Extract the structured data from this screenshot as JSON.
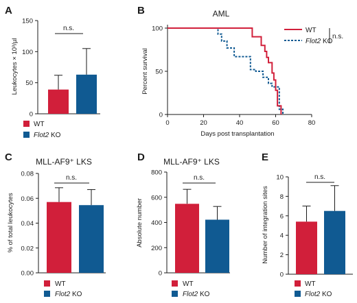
{
  "colors": {
    "wt": "#d11f3a",
    "ko": "#105a92",
    "axis": "#1a1a1a"
  },
  "legend": {
    "wt": "WT",
    "ko_italic": "Flot2",
    "ko_suffix": " KO"
  },
  "significance": "n.s.",
  "chart_data": [
    {
      "panel": "A",
      "type": "bar",
      "title": "",
      "ylabel": "Leukocytes × 10³/µl",
      "xlabel": "",
      "ylim": [
        0,
        150
      ],
      "yticks": [
        "0",
        "50",
        "100",
        "150"
      ],
      "categories": [
        "WT",
        "Flot2 KO"
      ],
      "values": [
        39,
        63
      ],
      "errors": [
        23,
        42
      ],
      "legend_position": "bottom"
    },
    {
      "panel": "B",
      "type": "line",
      "title": "AML",
      "xlabel": "Days post transplantation",
      "ylabel": "Percent survival",
      "xlim": [
        0,
        80
      ],
      "ylim": [
        0,
        100
      ],
      "xticks": [
        "0",
        "20",
        "40",
        "60",
        "80"
      ],
      "yticks": [
        "0",
        "50",
        "100"
      ],
      "legend_position": "top-right",
      "series": [
        {
          "name": "WT",
          "x": [
            0,
            47,
            47,
            52,
            52,
            54,
            54,
            55,
            55,
            56,
            56,
            58,
            58,
            59,
            59,
            60,
            60,
            61,
            61,
            63,
            63
          ],
          "y": [
            100,
            100,
            90,
            90,
            80,
            80,
            73,
            73,
            66,
            66,
            60,
            60,
            48,
            48,
            40,
            40,
            28,
            28,
            10,
            10,
            0
          ]
        },
        {
          "name": "Flot2 KO",
          "x": [
            0,
            28,
            28,
            30,
            30,
            33,
            33,
            37,
            37,
            46,
            46,
            49,
            49,
            53,
            53,
            56,
            56,
            58,
            58,
            62,
            62,
            64,
            64
          ],
          "y": [
            100,
            100,
            93,
            93,
            85,
            85,
            77,
            77,
            67,
            67,
            52,
            52,
            50,
            50,
            43,
            43,
            36,
            36,
            32,
            32,
            6,
            6,
            0
          ]
        }
      ]
    },
    {
      "panel": "C",
      "type": "bar",
      "title": "MLL-AF9⁺ LKS",
      "ylabel": "% of total leukocytes",
      "xlabel": "",
      "ylim": [
        0,
        0.08
      ],
      "yticks": [
        "0.00",
        "0.02",
        "0.04",
        "0.06",
        "0.08"
      ],
      "categories": [
        "WT",
        "Flot2 KO"
      ],
      "values": [
        0.057,
        0.0545
      ],
      "errors": [
        0.0115,
        0.0125
      ],
      "legend_position": "bottom"
    },
    {
      "panel": "D",
      "type": "bar",
      "title": "MLL-AF9⁺ LKS",
      "ylabel": "Absolute number",
      "xlabel": "",
      "ylim": [
        0,
        800
      ],
      "yticks": [
        "0",
        "200",
        "400",
        "600",
        "800"
      ],
      "categories": [
        "WT",
        "Flot2 KO"
      ],
      "values": [
        548,
        422
      ],
      "errors": [
        115,
        105
      ],
      "legend_position": "bottom"
    },
    {
      "panel": "E",
      "type": "bar",
      "title": "",
      "ylabel": "Number of integration sites",
      "xlabel": "",
      "ylim": [
        0,
        10
      ],
      "yticks": [
        "0",
        "2",
        "4",
        "6",
        "8",
        "10"
      ],
      "categories": [
        "WT",
        "Flot2 KO"
      ],
      "values": [
        5.4,
        6.5
      ],
      "errors": [
        1.6,
        2.6
      ],
      "legend_position": "bottom"
    }
  ]
}
